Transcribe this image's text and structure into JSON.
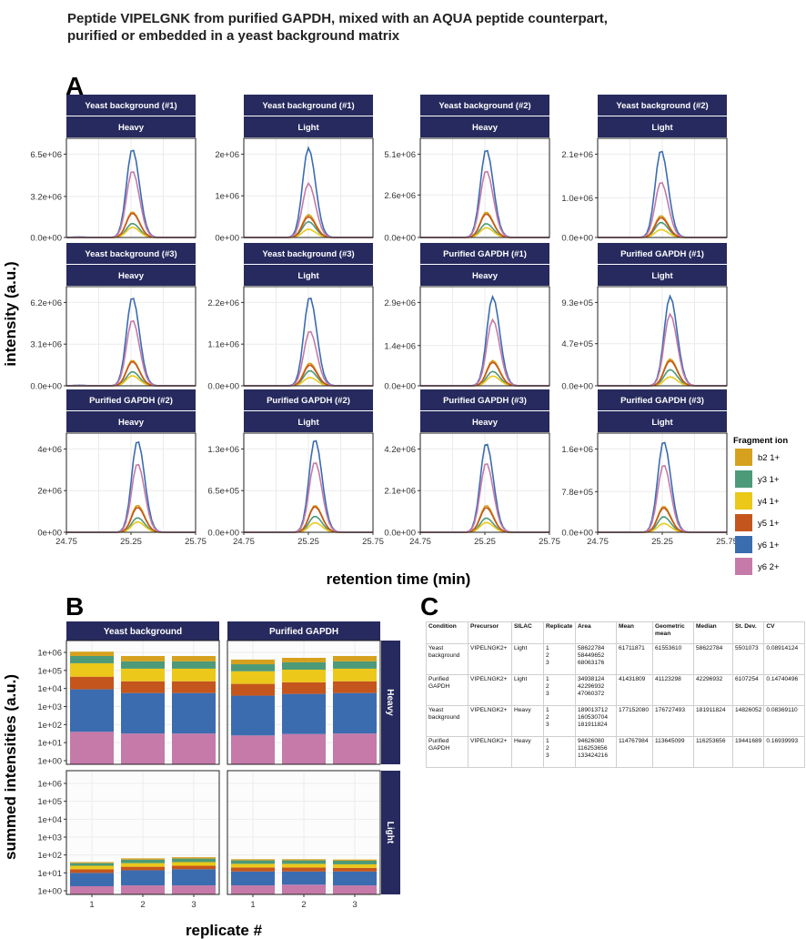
{
  "title_lines": [
    "Peptide VIPELGNK from purified GAPDH, mixed with an AQUA peptide counterpart,",
    "purified or embedded in a yeast background matrix"
  ],
  "panel_labels": {
    "a": "A",
    "b": "B",
    "c": "C"
  },
  "colors": {
    "strip": "#272a5e",
    "ions": {
      "b2 1+": "#d6a11e",
      "y3 1+": "#4d9a78",
      "y4 1+": "#ebc81a",
      "y5 1+": "#c4561d",
      "y6 1+": "#3b6cb0",
      "y6 2+": "#c57aa9"
    }
  },
  "chart_data": [
    {
      "panel": "A",
      "type": "line",
      "xlabel": "retention time (min)",
      "ylabel": "intensity (a.u.)",
      "xlim": [
        24.75,
        25.75
      ],
      "xticks": [
        "24.75",
        "25.25",
        "25.75"
      ],
      "legend": {
        "title": "Fragment ion",
        "position": "right",
        "entries": [
          "b2 1+",
          "y3 1+",
          "y4 1+",
          "y5 1+",
          "y6 1+",
          "y6 2+"
        ]
      },
      "facets": [
        {
          "strip": [
            "Yeast background (#1)",
            "Heavy"
          ],
          "yticks": [
            "0.0e+00",
            "3.2e+06",
            "6.5e+06"
          ],
          "ytick_values": [
            0,
            3200000.0,
            6500000.0
          ],
          "apex_rt": 25.26,
          "peak": {
            "y6 1+": 6900000.0,
            "y6 2+": 5200000.0,
            "b2 1+": 2000000.0,
            "y5 1+": 1900000.0,
            "y3 1+": 1100000.0,
            "y4 1+": 800000.0
          }
        },
        {
          "strip": [
            "Yeast background (#1)",
            "Light"
          ],
          "yticks": [
            "0e+00",
            "1e+06",
            "2e+06"
          ],
          "ytick_values": [
            0,
            1000000.0,
            2000000.0
          ],
          "apex_rt": 25.25,
          "peak": {
            "y6 1+": 2150000.0,
            "y6 2+": 1300000.0,
            "b2 1+": 550000.0,
            "y5 1+": 500000.0,
            "y3 1+": 380000.0,
            "y4 1+": 200000.0
          }
        },
        {
          "strip": [
            "Yeast background (#2)",
            "Heavy"
          ],
          "yticks": [
            "0.0e+00",
            "2.6e+06",
            "5.1e+06"
          ],
          "ytick_values": [
            0,
            2600000.0,
            5100000.0
          ],
          "apex_rt": 25.26,
          "peak": {
            "y6 1+": 5400000.0,
            "y6 2+": 4100000.0,
            "b2 1+": 1550000.0,
            "y5 1+": 1450000.0,
            "y3 1+": 850000.0,
            "y4 1+": 600000.0
          }
        },
        {
          "strip": [
            "Yeast background (#2)",
            "Light"
          ],
          "yticks": [
            "0.0e+00",
            "1.0e+06",
            "2.1e+06"
          ],
          "ytick_values": [
            0,
            1000000.0,
            2100000.0
          ],
          "apex_rt": 25.24,
          "peak": {
            "y6 1+": 2200000.0,
            "y6 2+": 1400000.0,
            "b2 1+": 550000.0,
            "y5 1+": 500000.0,
            "y3 1+": 380000.0,
            "y4 1+": 200000.0
          }
        },
        {
          "strip": [
            "Yeast background (#3)",
            "Heavy"
          ],
          "yticks": [
            "0.0e+00",
            "3.1e+06",
            "6.2e+06"
          ],
          "ytick_values": [
            0,
            3100000.0,
            6200000.0
          ],
          "apex_rt": 25.26,
          "peak": {
            "y6 1+": 6600000.0,
            "y6 2+": 4900000.0,
            "b2 1+": 1900000.0,
            "y5 1+": 1800000.0,
            "y3 1+": 1050000.0,
            "y4 1+": 750000.0
          }
        },
        {
          "strip": [
            "Yeast background (#3)",
            "Light"
          ],
          "yticks": [
            "0.0e+00",
            "1.1e+06",
            "2.2e+06"
          ],
          "ytick_values": [
            0,
            1100000.0,
            2200000.0
          ],
          "apex_rt": 25.26,
          "peak": {
            "y6 1+": 2350000.0,
            "y6 2+": 1450000.0,
            "b2 1+": 600000.0,
            "y5 1+": 550000.0,
            "y3 1+": 400000.0,
            "y4 1+": 220000.0
          }
        },
        {
          "strip": [
            "Purified GAPDH (#1)",
            "Heavy"
          ],
          "yticks": [
            "0.0e+00",
            "1.4e+06",
            "2.9e+06"
          ],
          "ytick_values": [
            0,
            1400000.0,
            2900000.0
          ],
          "apex_rt": 25.31,
          "peak": {
            "y6 1+": 3100000.0,
            "y6 2+": 2300000.0,
            "b2 1+": 880000.0,
            "y5 1+": 820000.0,
            "y3 1+": 500000.0,
            "y4 1+": 340000.0
          }
        },
        {
          "strip": [
            "Purified GAPDH (#1)",
            "Light"
          ],
          "yticks": [
            "0.0e+00",
            "4.7e+05",
            "9.3e+05"
          ],
          "ytick_values": [
            0,
            470000.0,
            930000.0
          ],
          "apex_rt": 25.31,
          "peak": {
            "y6 1+": 1000000.0,
            "y6 2+": 800000.0,
            "b2 1+": 300000.0,
            "y5 1+": 280000.0,
            "y3 1+": 180000.0,
            "y4 1+": 100000.0
          }
        },
        {
          "strip": [
            "Purified GAPDH (#2)",
            "Heavy"
          ],
          "yticks": [
            "0e+00",
            "2e+06",
            "4e+06"
          ],
          "ytick_values": [
            0,
            2000000.0,
            4000000.0
          ],
          "apex_rt": 25.3,
          "peak": {
            "y6 1+": 4400000.0,
            "y6 2+": 3300000.0,
            "b2 1+": 1300000.0,
            "y5 1+": 1200000.0,
            "y3 1+": 700000.0,
            "y4 1+": 500000.0
          }
        },
        {
          "strip": [
            "Purified GAPDH (#2)",
            "Light"
          ],
          "yticks": [
            "0.0e+00",
            "6.5e+05",
            "1.3e+06"
          ],
          "ytick_values": [
            0,
            650000.0,
            1300000.0
          ],
          "apex_rt": 25.3,
          "peak": {
            "y6 1+": 1450000.0,
            "y6 2+": 1100000.0,
            "b2 1+": 420000.0,
            "y5 1+": 400000.0,
            "y3 1+": 250000.0,
            "y4 1+": 150000.0
          }
        },
        {
          "strip": [
            "Purified GAPDH (#3)",
            "Heavy"
          ],
          "yticks": [
            "0.0e+00",
            "2.1e+06",
            "4.2e+06"
          ],
          "ytick_values": [
            0,
            2100000.0,
            4200000.0
          ],
          "apex_rt": 25.26,
          "peak": {
            "y6 1+": 4500000.0,
            "y6 2+": 3500000.0,
            "b2 1+": 1350000.0,
            "y5 1+": 1250000.0,
            "y3 1+": 720000.0,
            "y4 1+": 500000.0
          }
        },
        {
          "strip": [
            "Purified GAPDH (#3)",
            "Light"
          ],
          "yticks": [
            "0.0e+00",
            "7.8e+05",
            "1.6e+06"
          ],
          "ytick_values": [
            0,
            780000.0,
            1600000.0
          ],
          "apex_rt": 25.26,
          "peak": {
            "y6 1+": 1750000.0,
            "y6 2+": 1300000.0,
            "b2 1+": 500000.0,
            "y5 1+": 470000.0,
            "y3 1+": 300000.0,
            "y4 1+": 170000.0
          }
        }
      ]
    },
    {
      "panel": "B",
      "type": "bar",
      "stacked": true,
      "yscale": "log",
      "xlabel": "replicate #",
      "ylabel": "summed intensities (a.u.)",
      "yticks": [
        "1e+00",
        "1e+01",
        "1e+02",
        "1e+03",
        "1e+04",
        "1e+05",
        "1e+06"
      ],
      "categories": [
        "1",
        "2",
        "3"
      ],
      "columns": [
        "Yeast background",
        "Purified GAPDH"
      ],
      "rows": [
        "Heavy",
        "Light"
      ],
      "stack_order": [
        "y6 2+",
        "y6 1+",
        "y5 1+",
        "y4 1+",
        "y3 1+",
        "b2 1+"
      ],
      "stack_tops": {
        "Heavy": {
          "Yeast background": [
            [
              40,
              9000,
              45000,
              250000,
              630000,
              1100000
            ],
            [
              32,
              5600,
              25000,
              125000,
              320000,
              630000
            ],
            [
              32,
              5600,
              25000,
              125000,
              320000,
              630000
            ]
          ],
          "Purified GAPDH": [
            [
              25,
              4000,
              18000,
              90000,
              220000,
              400000
            ],
            [
              30,
              5000,
              22000,
              110000,
              280000,
              500000
            ],
            [
              32,
              5600,
              25000,
              125000,
              320000,
              630000
            ]
          ]
        },
        "Light": {
          "Yeast background": [
            [
              1.8,
              10,
              16,
              25,
              35,
              40
            ],
            [
              2,
              14,
              22,
              35,
              55,
              65
            ],
            [
              2,
              16,
              25,
              40,
              63,
              75
            ]
          ],
          "Purified GAPDH": [
            [
              2,
              12,
              20,
              32,
              50,
              58
            ],
            [
              2.2,
              12,
              20,
              32,
              50,
              58
            ],
            [
              2,
              12,
              19,
              30,
              48,
              56
            ]
          ]
        }
      }
    }
  ],
  "table": {
    "headers": [
      "Condition",
      "Precursor",
      "SILAC",
      "Replicate",
      "Area",
      "Mean",
      "Geometric mean",
      "Median",
      "St. Dev.",
      "CV"
    ],
    "rows": [
      [
        "Yeast background",
        "VIPELNGK2+",
        "Light",
        "1\n2\n3",
        "58622784\n58449652\n68063176",
        "61711871",
        "61553610",
        "58622784",
        "5501073",
        "0.08914124"
      ],
      [
        "Purified GAPDH",
        "VIPELNGK2+",
        "Light",
        "1\n2\n3",
        "34938124\n42296932\n47060372",
        "41431809",
        "41123298",
        "42296932",
        "6107254",
        "0.14740496"
      ],
      [
        "Yeast background",
        "VIPELNGK2+",
        "Heavy",
        "1\n2\n3",
        "189013712\n160530704\n181911824",
        "177152080",
        "176727493",
        "181911824",
        "14826052",
        "0.08369110"
      ],
      [
        "Purified GAPDH",
        "VIPELNGK2+",
        "Heavy",
        "1\n2\n3",
        "94626080\n116253656\n133424216",
        "114767984",
        "113645099",
        "116253656",
        "19441689",
        "0.16939993"
      ]
    ]
  }
}
